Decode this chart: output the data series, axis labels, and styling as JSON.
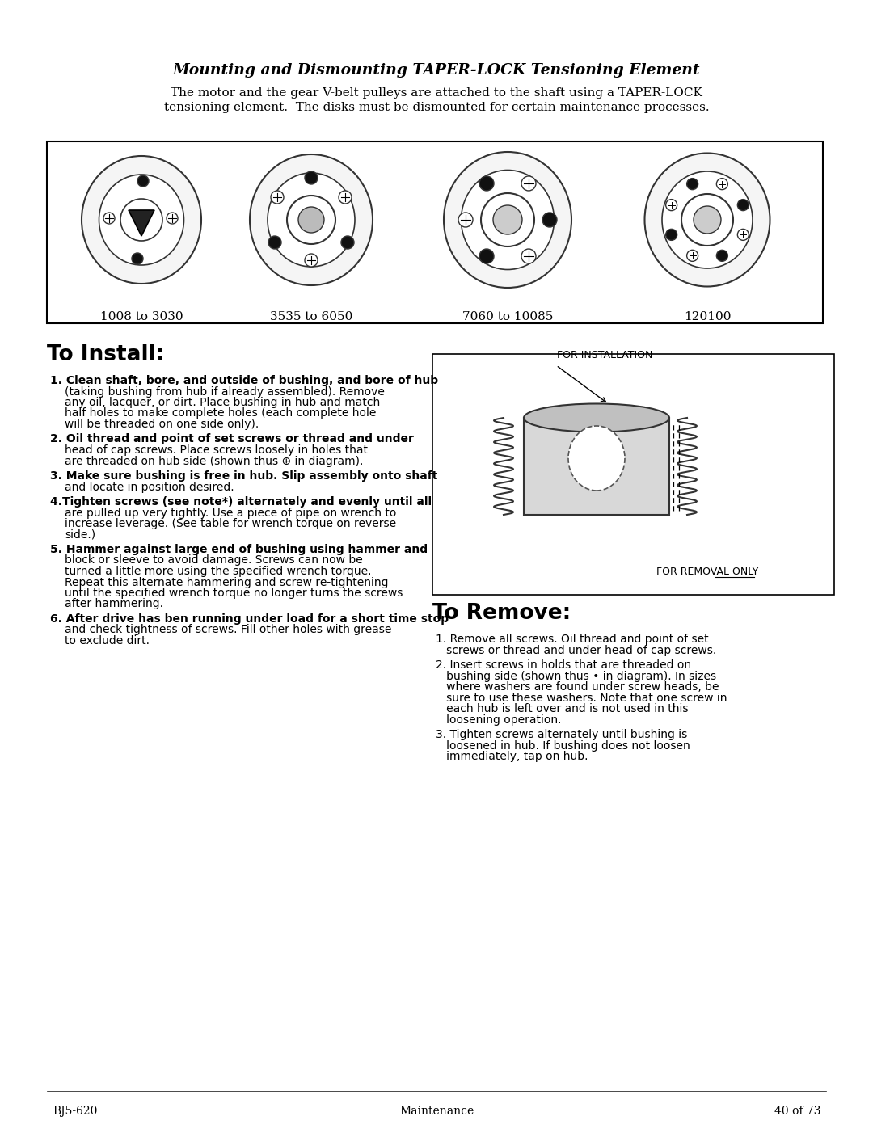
{
  "title": "Mounting and Dismounting TAPER-LOCK Tensioning Element",
  "subtitle_line1": "The motor and the gear V-belt pulleys are attached to the shaft using a TAPER-LOCK",
  "subtitle_line2": "tensioning element.  The disks must be dismounted for certain maintenance processes.",
  "bg_color": "#ffffff",
  "text_color": "#000000",
  "footer_left": "BJ5-620",
  "footer_center": "Maintenance",
  "footer_right": "40 of 73",
  "disk_labels": [
    "1008 to 3030",
    "3535 to 6050",
    "7060 to 10085",
    "120100"
  ],
  "install_title": "To Install:",
  "install_steps": [
    {
      "bold_line": "1. Clean shaft, bore, and outside of bushing, and bore of hub",
      "rest_lines": [
        "(taking bushing from hub if already assembled). Remove",
        "any oil, lacquer, or dirt. Place bushing in hub and match",
        "half holes to make complete holes (each complete hole",
        "will be threaded on one side only)."
      ]
    },
    {
      "bold_line": "2. Oil thread and point of set screws or thread and under",
      "rest_lines": [
        "head of cap screws. Place screws loosely in holes that",
        "are threaded on hub side (shown thus ⊕ in diagram)."
      ]
    },
    {
      "bold_line": "3. Make sure bushing is free in hub. Slip assembly onto shaft",
      "rest_lines": [
        "and locate in position desired."
      ]
    },
    {
      "bold_line": "4.Tighten screws (see note*) alternately and evenly until all",
      "rest_lines": [
        "are pulled up very tightly. Use a piece of pipe on wrench to",
        "increase leverage. (See table for wrench torque on reverse",
        "side.)"
      ]
    },
    {
      "bold_line": "5. Hammer against large end of bushing using hammer and",
      "rest_lines": [
        "block or sleeve to avoid damage. Screws can now be",
        "turned a little more using the specified wrench torque.",
        "Repeat this alternate hammering and screw re-tightening",
        "until the specified wrench torque no longer turns the screws",
        "after hammering."
      ]
    },
    {
      "bold_line": "6. After drive has ben running under load for a short time stop",
      "rest_lines": [
        "and check tightness of screws. Fill other holes with grease",
        "to exclude dirt."
      ]
    }
  ],
  "remove_title": "To Remove:",
  "remove_steps": [
    {
      "num": "1.",
      "text": "Remove all screws. Oil thread and point of set screws or thread and under head of cap screws."
    },
    {
      "num": "2.",
      "text": "Insert screws in holds that are threaded on bushing side (shown thus • in diagram). In sizes where washers are found under screw heads, be sure to use these washers. Note that one screw in each hub is left over and is not used in this loosening operation."
    },
    {
      "num": "3.",
      "text": "Tighten screws alternately until bushing is loosened in hub. If bushing does not loosen immediately, tap on hub."
    }
  ],
  "for_installation_label": "FOR INSTALLATION",
  "for_removal_label": "FOR REMOVAL ONLY"
}
